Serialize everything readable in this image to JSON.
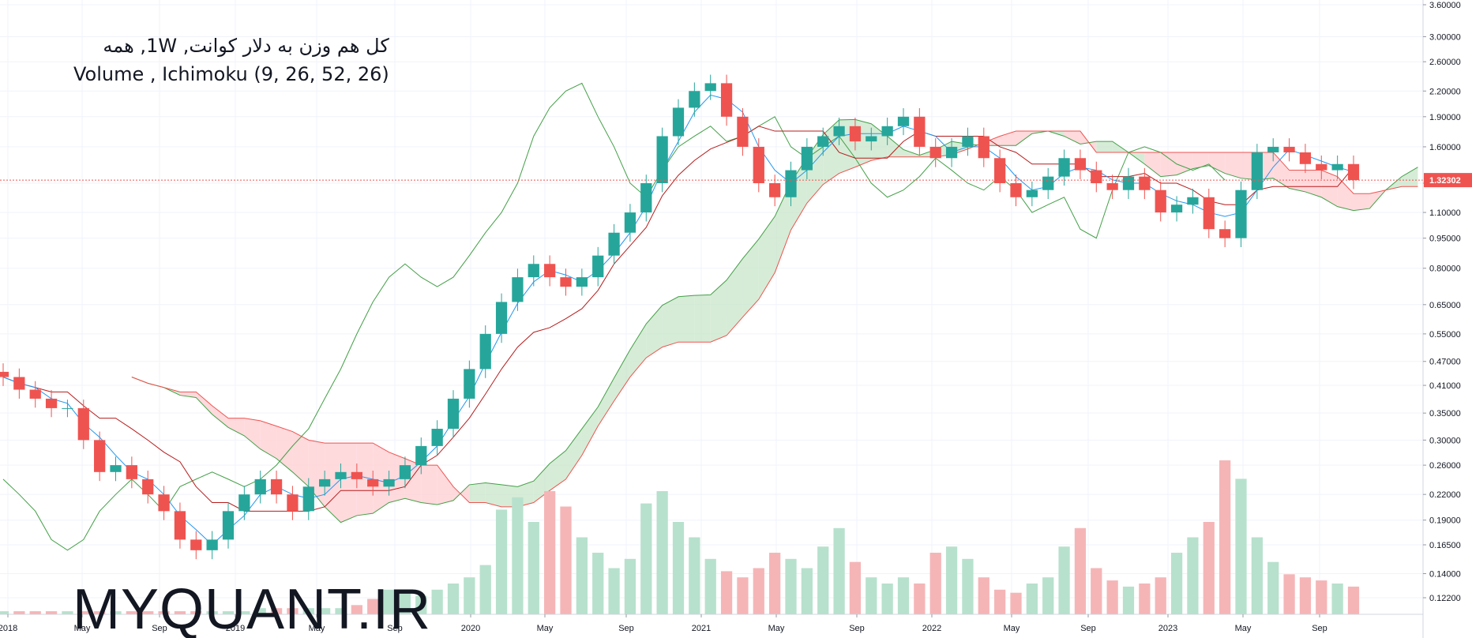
{
  "legend": {
    "line1": "کل هم وزن به دلار کوانت, 1W, همه",
    "line2": "Volume , Ichimoku (9, 26, 52, 26)"
  },
  "watermark": "MYQUANT.IR",
  "colors": {
    "up": "#26a69a",
    "down": "#ef5350",
    "conversion_line": "#2196f3",
    "base_line": "#b71c1c",
    "lagging_span": "#43a047",
    "cloud_bull": "#c8e6c9",
    "cloud_bear": "#ffcdd2",
    "price_line": "#ef5350",
    "volume_up": "#b7e1cd",
    "volume_down": "#f5b5b7"
  },
  "chart_data": {
    "type": "candlestick",
    "scale": "log",
    "y_ticks": [
      0.122,
      0.14,
      0.165,
      0.19,
      0.22,
      0.26,
      0.3,
      0.35,
      0.41,
      0.47,
      0.55,
      0.65,
      0.8,
      0.95,
      1.1,
      1.3,
      1.6,
      1.9,
      2.2,
      2.6,
      3.0,
      3.6
    ],
    "y_tick_labels": [
      "0.12200",
      "0.14000",
      "0.16500",
      "0.19000",
      "0.22000",
      "0.26000",
      "0.30000",
      "0.35000",
      "0.41000",
      "0.47000",
      "0.55000",
      "0.65000",
      "0.80000",
      "0.95000",
      "1.10000",
      "1.30000",
      "1.60000",
      "1.90000",
      "2.20000",
      "2.60000",
      "3.00000",
      "3.60000"
    ],
    "x_labels": [
      "2018",
      "May",
      "Sep",
      "2019",
      "May",
      "Sep",
      "2020",
      "May",
      "Sep",
      "2021",
      "May",
      "Sep",
      "2022",
      "May",
      "Sep",
      "2023",
      "May",
      "Sep"
    ],
    "last_price": 1.32302,
    "last_price_label": "1.32302",
    "ichimoku_params": [
      9,
      26,
      52,
      26
    ],
    "close_series": [
      0.43,
      0.4,
      0.38,
      0.36,
      0.36,
      0.3,
      0.25,
      0.26,
      0.24,
      0.22,
      0.2,
      0.17,
      0.16,
      0.17,
      0.2,
      0.22,
      0.24,
      0.22,
      0.2,
      0.23,
      0.24,
      0.25,
      0.24,
      0.23,
      0.24,
      0.26,
      0.29,
      0.32,
      0.38,
      0.45,
      0.55,
      0.66,
      0.76,
      0.82,
      0.76,
      0.72,
      0.76,
      0.86,
      0.98,
      1.1,
      1.3,
      1.7,
      2.0,
      2.2,
      2.3,
      1.9,
      1.6,
      1.3,
      1.2,
      1.4,
      1.6,
      1.7,
      1.8,
      1.65,
      1.7,
      1.8,
      1.9,
      1.6,
      1.5,
      1.6,
      1.7,
      1.5,
      1.3,
      1.2,
      1.25,
      1.35,
      1.5,
      1.4,
      1.3,
      1.25,
      1.35,
      1.25,
      1.1,
      1.15,
      1.2,
      1.0,
      0.95,
      1.25,
      1.55,
      1.6,
      1.55,
      1.45,
      1.4,
      1.45,
      1.32302
    ],
    "volume_series": [
      0.01,
      0.01,
      0.01,
      0.01,
      0.01,
      0.01,
      0.01,
      0.01,
      0.01,
      0.01,
      0.01,
      0.01,
      0.01,
      0.01,
      0.01,
      0.01,
      0.02,
      0.02,
      0.02,
      0.02,
      0.02,
      0.02,
      0.03,
      0.05,
      0.08,
      0.07,
      0.06,
      0.08,
      0.1,
      0.12,
      0.16,
      0.34,
      0.38,
      0.3,
      0.4,
      0.35,
      0.25,
      0.2,
      0.15,
      0.18,
      0.36,
      0.4,
      0.3,
      0.25,
      0.18,
      0.14,
      0.12,
      0.15,
      0.2,
      0.18,
      0.15,
      0.22,
      0.28,
      0.17,
      0.12,
      0.1,
      0.12,
      0.1,
      0.2,
      0.22,
      0.18,
      0.12,
      0.08,
      0.07,
      0.1,
      0.12,
      0.22,
      0.28,
      0.15,
      0.11,
      0.09,
      0.1,
      0.12,
      0.2,
      0.25,
      0.3,
      0.5,
      0.44,
      0.25,
      0.17,
      0.13,
      0.12,
      0.11,
      0.1,
      0.09
    ],
    "ichimoku": {
      "conversion_line": "blue",
      "base_line": "red",
      "lagging_span": "green",
      "cloud": "kumo"
    }
  }
}
